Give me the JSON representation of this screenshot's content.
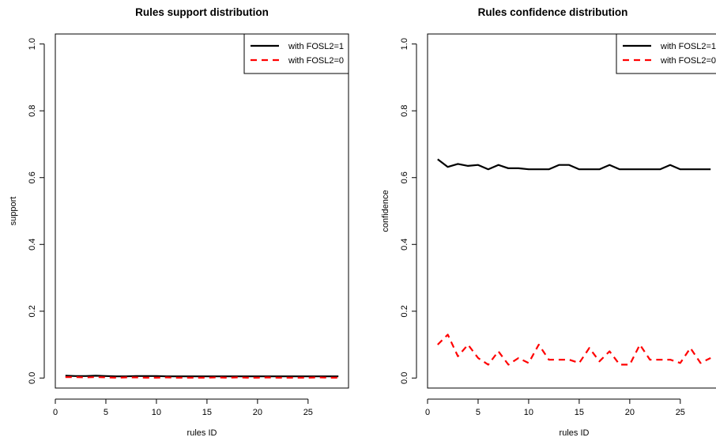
{
  "chart_data": [
    {
      "type": "line",
      "title": "Rules support distribution",
      "xlabel": "rules ID",
      "ylabel": "support",
      "xlim": [
        0,
        29
      ],
      "ylim": [
        -0.03,
        1.03
      ],
      "xticks": [
        "0",
        "5",
        "10",
        "15",
        "20",
        "25"
      ],
      "yticks": [
        "0.0",
        "0.2",
        "0.4",
        "0.6",
        "0.8",
        "1.0"
      ],
      "legend_position": "top-right",
      "grid": false,
      "x": [
        1,
        2,
        3,
        4,
        5,
        6,
        7,
        8,
        9,
        10,
        11,
        12,
        13,
        14,
        15,
        16,
        17,
        18,
        19,
        20,
        21,
        22,
        23,
        24,
        25,
        26,
        27,
        28
      ],
      "series": [
        {
          "name": "with FOSL2=1",
          "color": "#000000",
          "style": "solid",
          "values": [
            0.007,
            0.006,
            0.006,
            0.007,
            0.006,
            0.005,
            0.005,
            0.006,
            0.006,
            0.006,
            0.005,
            0.005,
            0.005,
            0.005,
            0.005,
            0.005,
            0.005,
            0.005,
            0.005,
            0.005,
            0.005,
            0.005,
            0.005,
            0.005,
            0.005,
            0.005,
            0.005,
            0.005
          ]
        },
        {
          "name": "with FOSL2=0",
          "color": "#ff0000",
          "style": "dashed",
          "values": [
            0.003,
            0.003,
            0.002,
            0.003,
            0.002,
            0.001,
            0.002,
            0.002,
            0.001,
            0.001,
            0.002,
            0.001,
            0.001,
            0.001,
            0.001,
            0.002,
            0.001,
            0.002,
            0.001,
            0.001,
            0.002,
            0.001,
            0.001,
            0.001,
            0.001,
            0.002,
            0.001,
            0.001
          ]
        }
      ]
    },
    {
      "type": "line",
      "title": "Rules confidence distribution",
      "xlabel": "rules ID",
      "ylabel": "confidence",
      "xlim": [
        0,
        29
      ],
      "ylim": [
        -0.03,
        1.03
      ],
      "xticks": [
        "0",
        "5",
        "10",
        "15",
        "20",
        "25"
      ],
      "yticks": [
        "0.0",
        "0.2",
        "0.4",
        "0.6",
        "0.8",
        "1.0"
      ],
      "legend_position": "top-right",
      "grid": false,
      "x": [
        1,
        2,
        3,
        4,
        5,
        6,
        7,
        8,
        9,
        10,
        11,
        12,
        13,
        14,
        15,
        16,
        17,
        18,
        19,
        20,
        21,
        22,
        23,
        24,
        25,
        26,
        27,
        28
      ],
      "series": [
        {
          "name": "with FOSL2=1",
          "color": "#000000",
          "style": "solid",
          "values": [
            0.655,
            0.632,
            0.641,
            0.635,
            0.638,
            0.625,
            0.638,
            0.628,
            0.628,
            0.625,
            0.625,
            0.625,
            0.638,
            0.638,
            0.625,
            0.625,
            0.625,
            0.638,
            0.625,
            0.625,
            0.625,
            0.625,
            0.625,
            0.638,
            0.625,
            0.625,
            0.625,
            0.625
          ]
        },
        {
          "name": "with FOSL2=0",
          "color": "#ff0000",
          "style": "dashed",
          "values": [
            0.1,
            0.13,
            0.065,
            0.1,
            0.06,
            0.04,
            0.08,
            0.04,
            0.06,
            0.045,
            0.1,
            0.055,
            0.055,
            0.055,
            0.045,
            0.09,
            0.05,
            0.08,
            0.04,
            0.04,
            0.1,
            0.055,
            0.055,
            0.055,
            0.045,
            0.09,
            0.045,
            0.06
          ]
        }
      ]
    }
  ]
}
